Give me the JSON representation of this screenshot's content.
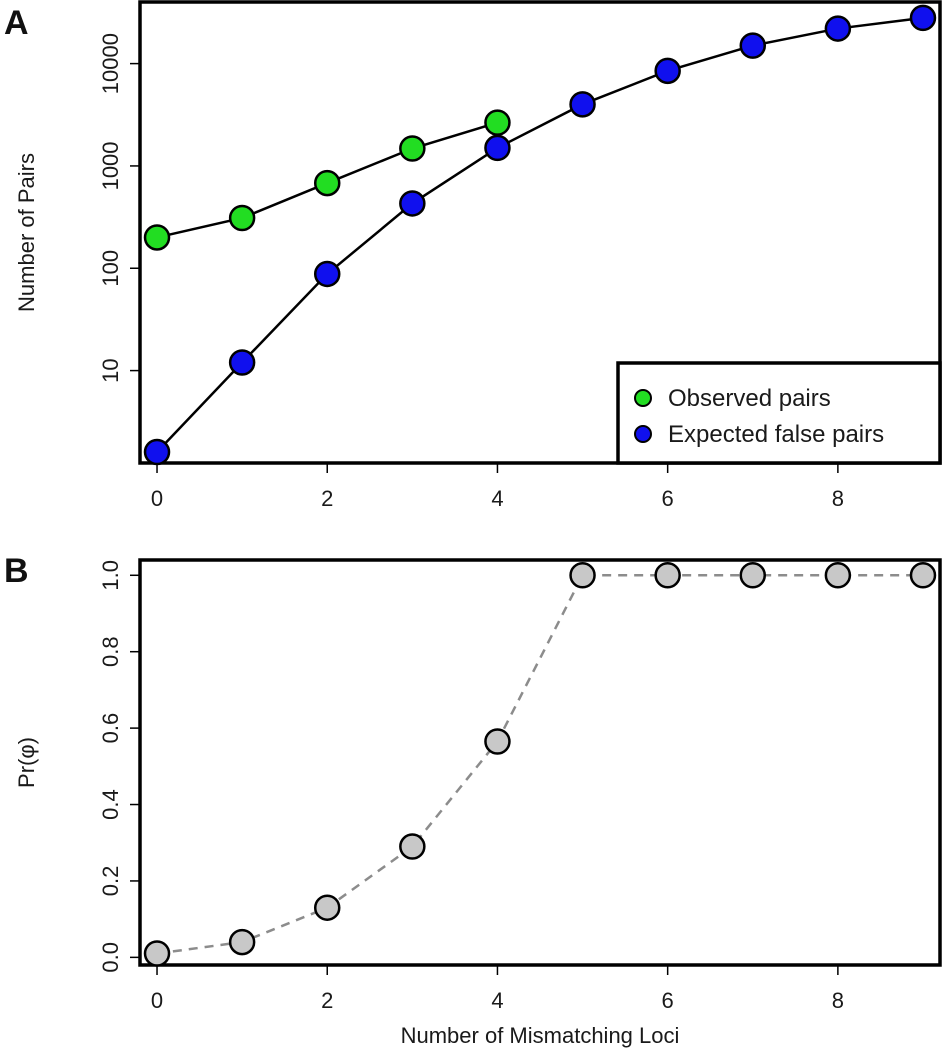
{
  "panels": {
    "a": {
      "letter": "A"
    },
    "b": {
      "letter": "B"
    }
  },
  "chart_data": [
    {
      "type": "line",
      "panel": "A",
      "yscale": "log",
      "title": "",
      "xlabel": "",
      "ylabel": "Number of Pairs",
      "x": [
        0,
        1,
        2,
        3,
        4,
        5,
        6,
        7,
        8,
        9
      ],
      "xticks": [
        "0",
        "2",
        "4",
        "6",
        "8"
      ],
      "xtick_values": [
        0,
        2,
        4,
        6,
        8
      ],
      "yticks": [
        "10",
        "100",
        "1000",
        "10000"
      ],
      "ytick_values": [
        10,
        100,
        1000,
        10000
      ],
      "xlim": [
        -0.2,
        9.2
      ],
      "ylim": [
        1.25,
        40000
      ],
      "legend_position": "bottom-right",
      "series": [
        {
          "name": "Observed pairs",
          "color": "#22dd22",
          "x": [
            0,
            1,
            2,
            3,
            4
          ],
          "values": [
            200,
            310,
            680,
            1480,
            2650
          ]
        },
        {
          "name": "Expected false pairs",
          "color": "#1010ee",
          "x": [
            0,
            1,
            2,
            3,
            4,
            5,
            6,
            7,
            8,
            9
          ],
          "values": [
            1.6,
            12,
            88,
            430,
            1500,
            4000,
            8500,
            15000,
            22000,
            28000
          ]
        }
      ]
    },
    {
      "type": "scatter",
      "panel": "B",
      "title": "",
      "xlabel": "Number of Mismatching Loci",
      "ylabel": "Pr(φ)",
      "x": [
        0,
        1,
        2,
        3,
        4,
        5,
        6,
        7,
        8,
        9
      ],
      "values": [
        0.01,
        0.04,
        0.13,
        0.29,
        0.565,
        1.0,
        1.0,
        1.0,
        1.0,
        1.0
      ],
      "line_style": "dashed",
      "point_color": "#c8c8c8",
      "line_color": "#8c8c8c",
      "xticks": [
        "0",
        "2",
        "4",
        "6",
        "8"
      ],
      "xtick_values": [
        0,
        2,
        4,
        6,
        8
      ],
      "yticks": [
        "0.0",
        "0.2",
        "0.4",
        "0.6",
        "0.8",
        "1.0"
      ],
      "ytick_values": [
        0,
        0.2,
        0.4,
        0.6,
        0.8,
        1.0
      ],
      "xlim": [
        -0.2,
        9.2
      ],
      "ylim": [
        -0.02,
        1.04
      ]
    }
  ]
}
